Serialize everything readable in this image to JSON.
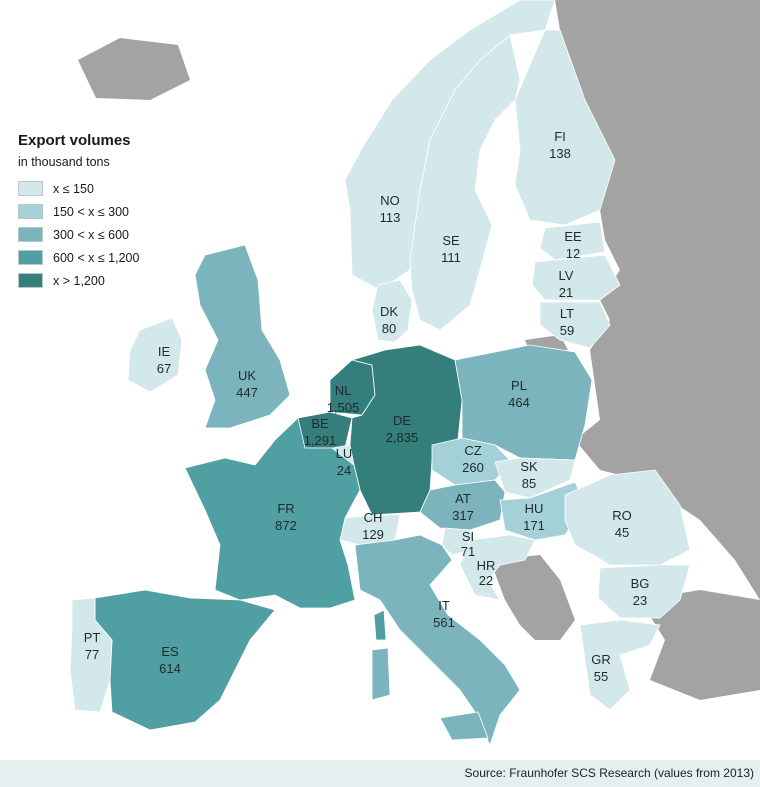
{
  "legend": {
    "title": "Export volumes",
    "subtitle": "in thousand tons",
    "items": [
      {
        "label": "x ≤ 150",
        "color": "#d3e8ea"
      },
      {
        "label": "150 < x ≤ 300",
        "color": "#a4d0d7"
      },
      {
        "label": "300 < x ≤ 600",
        "color": "#7bb4bd"
      },
      {
        "label": "600 < x ≤ 1,200",
        "color": "#4f9fa3"
      },
      {
        "label": "x > 1,200",
        "color": "#347e7b"
      }
    ]
  },
  "non_data_color": "#a3a3a3",
  "countries": [
    {
      "code": "NO",
      "value": "113"
    },
    {
      "code": "SE",
      "value": "111"
    },
    {
      "code": "FI",
      "value": "138"
    },
    {
      "code": "EE",
      "value": "12"
    },
    {
      "code": "LV",
      "value": "21"
    },
    {
      "code": "LT",
      "value": "59"
    },
    {
      "code": "DK",
      "value": "80"
    },
    {
      "code": "IE",
      "value": "67"
    },
    {
      "code": "UK",
      "value": "447"
    },
    {
      "code": "NL",
      "value": "1,505"
    },
    {
      "code": "BE",
      "value": "1,291"
    },
    {
      "code": "LU",
      "value": "24"
    },
    {
      "code": "DE",
      "value": "2,835"
    },
    {
      "code": "PL",
      "value": "464"
    },
    {
      "code": "CZ",
      "value": "260"
    },
    {
      "code": "SK",
      "value": "85"
    },
    {
      "code": "AT",
      "value": "317"
    },
    {
      "code": "HU",
      "value": "171"
    },
    {
      "code": "CH",
      "value": "129"
    },
    {
      "code": "FR",
      "value": "872"
    },
    {
      "code": "SI",
      "value": "71"
    },
    {
      "code": "HR",
      "value": "22"
    },
    {
      "code": "RO",
      "value": "45"
    },
    {
      "code": "BG",
      "value": "23"
    },
    {
      "code": "IT",
      "value": "561"
    },
    {
      "code": "GR",
      "value": "55"
    },
    {
      "code": "ES",
      "value": "614"
    },
    {
      "code": "PT",
      "value": "77"
    }
  ],
  "source": "Source: Fraunhofer SCS Research (values from 2013)"
}
